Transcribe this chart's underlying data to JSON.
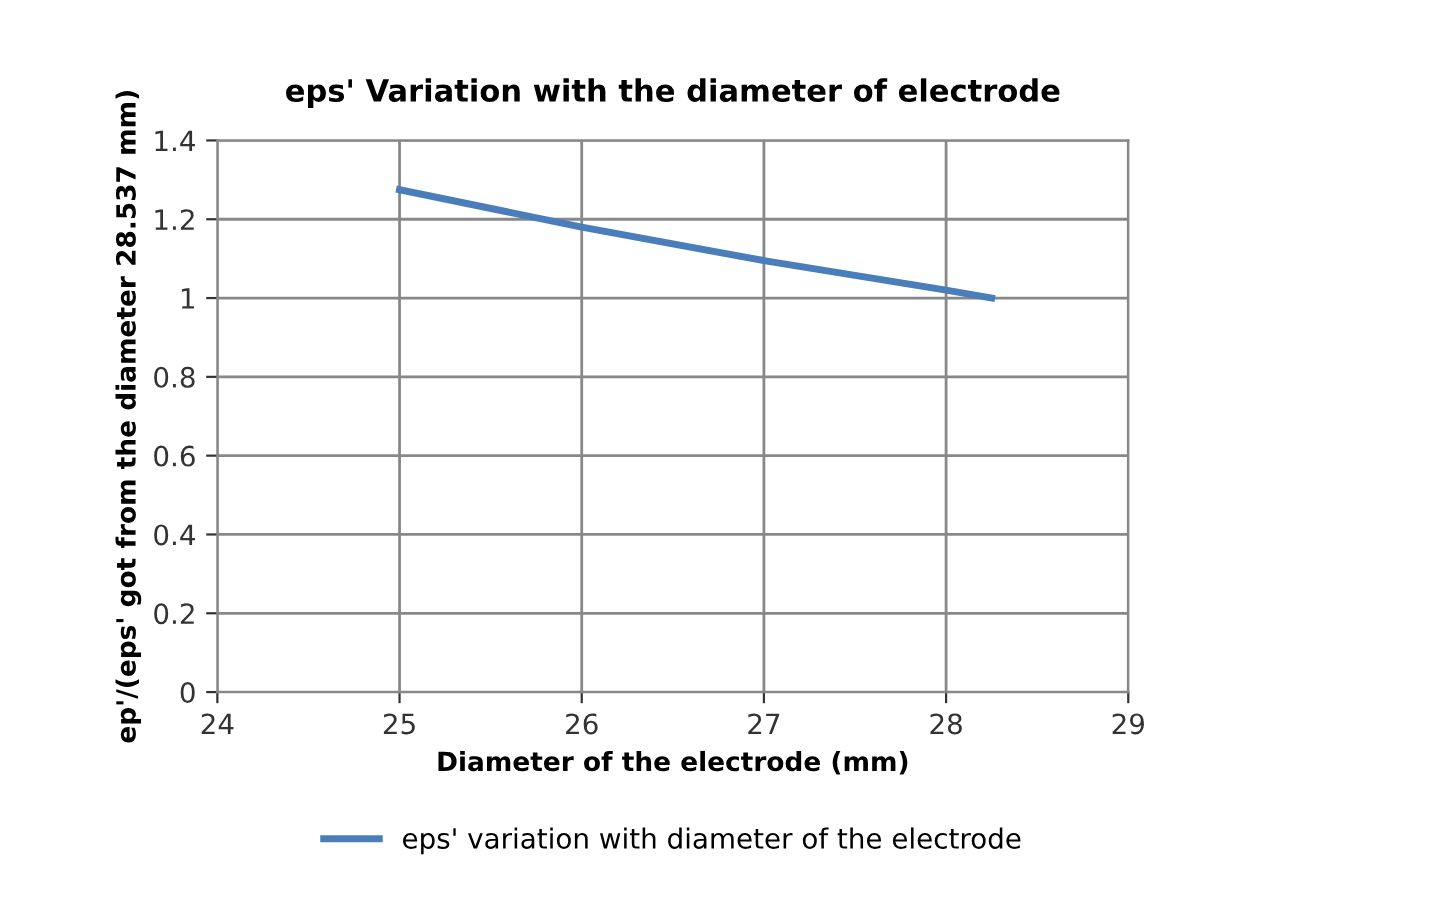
{
  "chart_data": {
    "type": "line",
    "title": "eps' Variation with the diameter of electrode",
    "xlabel": "Diameter of the electrode (mm)",
    "ylabel": "ep'/(eps' got from the diameter 28.537 mm)",
    "series": [
      {
        "name": "eps' variation with diameter of the electrode",
        "color": "#4a7ebb",
        "x": [
          25,
          26,
          27,
          28,
          28.25
        ],
        "values": [
          1.275,
          1.18,
          1.095,
          1.02,
          1.0
        ]
      }
    ],
    "xlim": [
      24,
      29
    ],
    "xticks": [
      24,
      25,
      26,
      27,
      28,
      29
    ],
    "ylim": [
      0,
      1.4
    ],
    "yticks": [
      {
        "value": 0,
        "label": "0"
      },
      {
        "value": 0.2,
        "label": "0.2"
      },
      {
        "value": 0.4,
        "label": "0.4"
      },
      {
        "value": 0.6,
        "label": "0.6"
      },
      {
        "value": 0.8,
        "label": "0.8"
      },
      {
        "value": 1,
        "label": "1"
      },
      {
        "value": 1.2,
        "label": "1.2"
      },
      {
        "value": 1.4,
        "label": "1.4"
      }
    ],
    "grid": true,
    "legend": "bottom",
    "marker": "none",
    "line_style": "solid"
  }
}
